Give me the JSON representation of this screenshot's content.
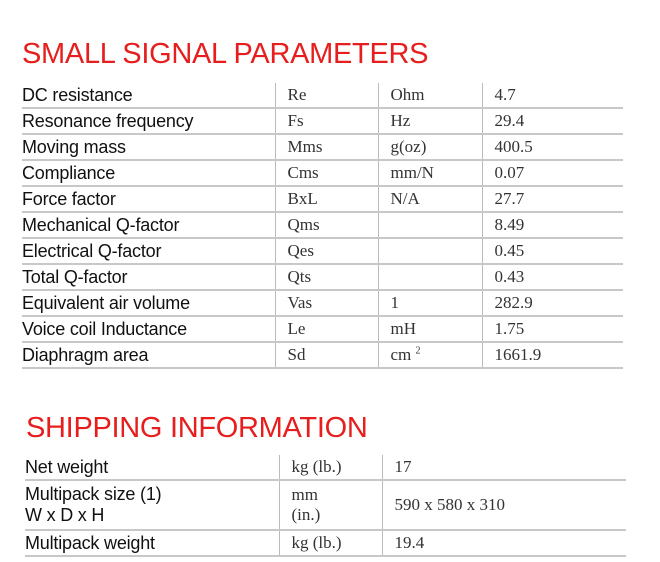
{
  "small_signal": {
    "title": "SMALL SIGNAL PARAMETERS",
    "rows": [
      {
        "label": "DC resistance",
        "symbol": "Re",
        "unit": "Ohm",
        "value": "4.7"
      },
      {
        "label": "Resonance frequency",
        "symbol": "Fs",
        "unit": "Hz",
        "value": "29.4"
      },
      {
        "label": "Moving mass",
        "symbol": "Mms",
        "unit": "g(oz)",
        "value": "400.5"
      },
      {
        "label": "Compliance",
        "symbol": "Cms",
        "unit": "mm/N",
        "value": "0.07"
      },
      {
        "label": "Force factor",
        "symbol": "BxL",
        "unit": "N/A",
        "value": "27.7"
      },
      {
        "label": "Mechanical Q-factor",
        "symbol": "Qms",
        "unit": "",
        "value": "8.49"
      },
      {
        "label": "Electrical Q-factor",
        "symbol": "Qes",
        "unit": "",
        "value": "0.45"
      },
      {
        "label": "Total Q-factor",
        "symbol": "Qts",
        "unit": "",
        "value": "0.43"
      },
      {
        "label": "Equivalent air volume",
        "symbol": "Vas",
        "unit": "1",
        "value": "282.9"
      },
      {
        "label": "Voice coil Inductance",
        "symbol": "Le",
        "unit": "mH",
        "value": "1.75"
      },
      {
        "label": "Diaphragm area",
        "symbol": "Sd",
        "unit": "cm",
        "unit_sup": "2",
        "value": "1661.9"
      }
    ]
  },
  "shipping": {
    "title": "SHIPPING INFORMATION",
    "rows": [
      {
        "label": "Net weight",
        "label2": "",
        "unit": "kg (lb.)",
        "unit2": "",
        "value": "17"
      },
      {
        "label": "Multipack size (1)",
        "label2": "W x D x H",
        "unit": "mm",
        "unit2": "(in.)",
        "value": "590 x 580 x 310"
      },
      {
        "label": "Multipack weight",
        "label2": "",
        "unit": "kg (lb.)",
        "unit2": "",
        "value": "19.4"
      }
    ]
  }
}
